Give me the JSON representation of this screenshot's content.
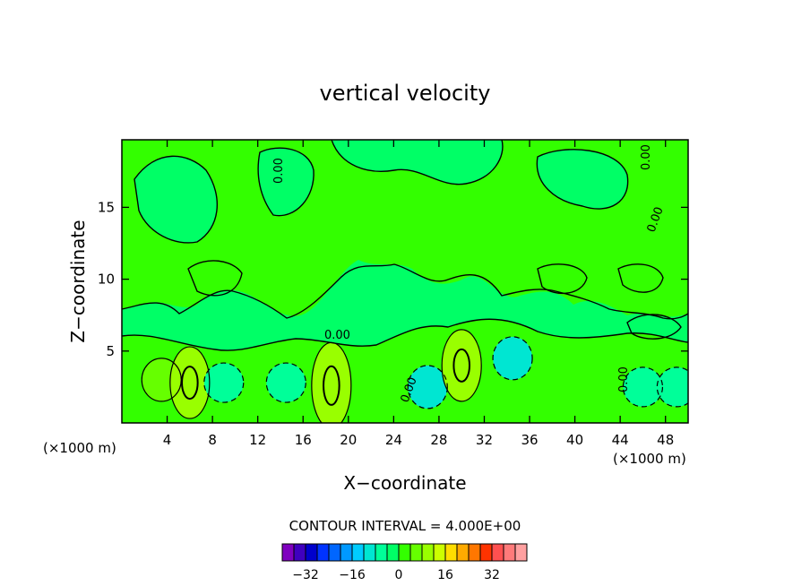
{
  "chart_data": {
    "type": "heatmap",
    "title": "vertical velocity",
    "xlabel": "X−coordinate",
    "ylabel": "Z−coordinate",
    "x_unit_left": "(×1000 m)",
    "x_unit_right": "(×1000 m)",
    "xlim": [
      0,
      50
    ],
    "ylim": [
      0,
      19.7
    ],
    "x_ticks": [
      4,
      8,
      12,
      16,
      20,
      24,
      28,
      32,
      36,
      40,
      44,
      48
    ],
    "y_ticks": [
      5,
      10,
      15
    ],
    "contour_interval_label": "CONTOUR INTERVAL = 4.000E+00",
    "contour_label": "0.00",
    "colorbar": {
      "colors": [
        "#7f00bf",
        "#3f00bf",
        "#0000cc",
        "#0033ff",
        "#0066ff",
        "#0099ff",
        "#00ccff",
        "#00e6d2",
        "#00ff99",
        "#00ff66",
        "#33ff00",
        "#66ff00",
        "#99ff00",
        "#ccff00",
        "#ffdd00",
        "#ffaa00",
        "#ff7700",
        "#ff3300",
        "#ff5050",
        "#ff7a7a",
        "#ffa0a0"
      ],
      "tick_labels": [
        "−32",
        "−16",
        "0",
        "16",
        "32"
      ],
      "tick_values": [
        -32,
        -16,
        0,
        16,
        32
      ]
    },
    "regions": [
      {
        "x": 3.5,
        "z": 3.0,
        "value": 6,
        "color": "#66ff00"
      },
      {
        "x": 6.0,
        "z": 2.8,
        "value": 10,
        "color": "#99ff00"
      },
      {
        "x": 9.0,
        "z": 2.8,
        "value": -4,
        "color": "#00ff99"
      },
      {
        "x": 14.5,
        "z": 2.8,
        "value": -4,
        "color": "#00ff99"
      },
      {
        "x": 18.5,
        "z": 2.6,
        "value": 12,
        "color": "#99ff00"
      },
      {
        "x": 27.0,
        "z": 2.5,
        "value": -6,
        "color": "#00e6d2"
      },
      {
        "x": 30.0,
        "z": 4.0,
        "value": 10,
        "color": "#99ff00"
      },
      {
        "x": 34.5,
        "z": 4.5,
        "value": -6,
        "color": "#00e6d2"
      },
      {
        "x": 46.0,
        "z": 2.5,
        "value": -4,
        "color": "#00ff99"
      },
      {
        "x": 49.0,
        "z": 2.5,
        "value": -4,
        "color": "#00ff99"
      }
    ]
  }
}
